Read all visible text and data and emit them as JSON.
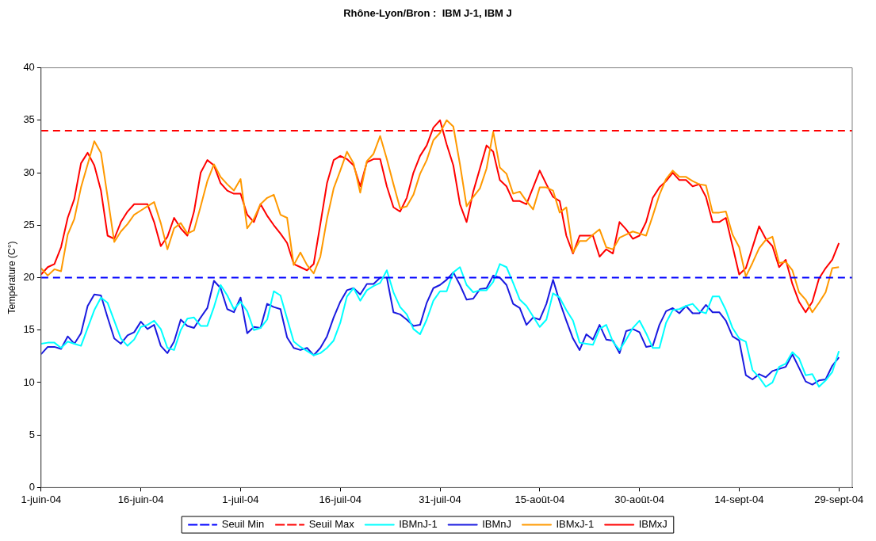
{
  "chart_data": {
    "type": "line",
    "title": "Rhône-Lyon/Bron :  IBM J-1, IBM J",
    "ylabel": "Température (C°)",
    "x": [
      "--06-01",
      "--06-02",
      "--06-03",
      "--06-04",
      "--06-05",
      "--06-06",
      "--06-07",
      "--06-08",
      "--06-09",
      "--06-10",
      "--06-11",
      "--06-12",
      "--06-13",
      "--06-14",
      "--06-15",
      "--06-16",
      "--06-17",
      "--06-18",
      "--06-19",
      "--06-20",
      "--06-21",
      "--06-22",
      "--06-23",
      "--06-24",
      "--06-25",
      "--06-26",
      "--06-27",
      "--06-28",
      "--06-29",
      "--06-30",
      "--07-01",
      "--07-02",
      "--07-03",
      "--07-04",
      "--07-05",
      "--07-06",
      "--07-07",
      "--07-08",
      "--07-09",
      "--07-10",
      "--07-11",
      "--07-12",
      "--07-13",
      "--07-14",
      "--07-15",
      "--07-16",
      "--07-17",
      "--07-18",
      "--07-19",
      "--07-20",
      "--07-21",
      "--07-22",
      "--07-23",
      "--07-24",
      "--07-25",
      "--07-26",
      "--07-27",
      "--07-28",
      "--07-29",
      "--07-30",
      "--07-31",
      "--08-01",
      "--08-02",
      "--08-03",
      "--08-04",
      "--08-05",
      "--08-06",
      "--08-07",
      "--08-08",
      "--08-09",
      "--08-10",
      "--08-11",
      "--08-12",
      "--08-13",
      "--08-14",
      "--08-15",
      "--08-16",
      "--08-17",
      "--08-18",
      "--08-19",
      "--08-20",
      "--08-21",
      "--08-22",
      "--08-23",
      "--08-24",
      "--08-25",
      "--08-26",
      "--08-27",
      "--08-28",
      "--08-29",
      "--08-30",
      "--08-31",
      "--09-01",
      "--09-02",
      "--09-03",
      "--09-04",
      "--09-05",
      "--09-06",
      "--09-07",
      "--09-08",
      "--09-09",
      "--09-10",
      "--09-11",
      "--09-12",
      "--09-13",
      "--09-14",
      "--09-15",
      "--09-16",
      "--09-17",
      "--09-18",
      "--09-19",
      "--09-20",
      "--09-21",
      "--09-22",
      "--09-23",
      "--09-24",
      "--09-25",
      "--09-26",
      "--09-27",
      "--09-28",
      "--09-29"
    ],
    "xlim": [
      "--06-01",
      "--10-01"
    ],
    "xticks": [
      {
        "value": "--06-01",
        "label": "1-juin-04"
      },
      {
        "value": "--06-16",
        "label": "16-juin-04"
      },
      {
        "value": "--07-01",
        "label": "1-juil-04"
      },
      {
        "value": "--07-16",
        "label": "16-juil-04"
      },
      {
        "value": "--07-31",
        "label": "31-juil-04"
      },
      {
        "value": "--08-15",
        "label": "15-août-04"
      },
      {
        "value": "--08-30",
        "label": "30-août-04"
      },
      {
        "value": "--09-14",
        "label": "14-sept-04"
      },
      {
        "value": "--09-29",
        "label": "29-sept-04"
      }
    ],
    "ylim": [
      0,
      40
    ],
    "yticks": [
      0,
      5,
      10,
      15,
      20,
      25,
      30,
      35,
      40
    ],
    "grid": false,
    "legend": "bottom",
    "marker": "none",
    "series": [
      {
        "name": "Seuil Min",
        "color": "#0000ff",
        "line_style": "dashed",
        "x": [
          "--06-01",
          "--10-01"
        ],
        "values": [
          20,
          20
        ]
      },
      {
        "name": "Seuil Max",
        "color": "#ff0000",
        "line_style": "dashed",
        "x": [
          "--06-01",
          "--10-01"
        ],
        "values": [
          34,
          34
        ]
      },
      {
        "name": "IBMnJ-1",
        "color": "#00ffff",
        "line_style": "solid",
        "values": [
          13.7,
          13.8,
          13.8,
          13.3,
          13.9,
          13.7,
          13.5,
          15.2,
          16.9,
          18.1,
          17.6,
          15.9,
          14.2,
          13.5,
          14.1,
          15.3,
          15.5,
          15.9,
          15.1,
          13.3,
          13.1,
          15.0,
          16.1,
          16.2,
          15.4,
          15.4,
          17.2,
          19.3,
          18.3,
          17.0,
          17.7,
          16.8,
          15.0,
          15.2,
          16.0,
          18.7,
          18.3,
          16.1,
          13.9,
          13.4,
          13.0,
          12.6,
          12.8,
          13.3,
          14.0,
          15.7,
          18.2,
          19.0,
          17.8,
          18.8,
          19.2,
          19.5,
          20.7,
          18.6,
          17.2,
          16.5,
          15.1,
          14.6,
          16.0,
          17.8,
          18.7,
          18.7,
          20.5,
          21.0,
          19.3,
          18.6,
          18.8,
          18.8,
          19.6,
          21.3,
          21.0,
          19.5,
          17.9,
          17.3,
          16.3,
          15.3,
          16.0,
          18.5,
          18.1,
          16.9,
          15.9,
          13.8,
          13.7,
          13.6,
          15.1,
          15.5,
          13.9,
          13.1,
          14.1,
          15.2,
          15.9,
          14.7,
          13.3,
          13.3,
          15.7,
          16.9,
          17.0,
          17.3,
          17.5,
          16.8,
          16.6,
          18.2,
          18.2,
          16.9,
          15.2,
          14.2,
          13.9,
          11.2,
          10.5,
          9.6,
          10.0,
          11.5,
          11.8,
          12.9,
          12.3,
          10.7,
          10.8,
          9.6,
          10.2,
          11.0,
          13.0
        ]
      },
      {
        "name": "IBMnJ",
        "color": "#1a1ae0",
        "line_style": "solid",
        "values": [
          12.7,
          13.4,
          13.4,
          13.2,
          14.4,
          13.7,
          14.7,
          17.3,
          18.4,
          18.3,
          16.2,
          14.2,
          13.7,
          14.5,
          14.8,
          15.8,
          15.1,
          15.5,
          13.5,
          12.8,
          13.9,
          16.0,
          15.4,
          15.2,
          16.2,
          17.1,
          19.7,
          19.0,
          17.0,
          16.7,
          18.1,
          14.7,
          15.3,
          15.2,
          17.5,
          17.2,
          17.0,
          14.3,
          13.3,
          13.1,
          13.3,
          12.6,
          13.3,
          14.4,
          16.2,
          17.7,
          18.8,
          19.0,
          18.4,
          19.4,
          19.4,
          20.0,
          20.0,
          16.7,
          16.5,
          16.0,
          15.4,
          15.5,
          17.6,
          19.0,
          19.3,
          19.8,
          20.5,
          19.3,
          17.9,
          18.0,
          18.9,
          19.0,
          20.2,
          20.0,
          19.3,
          17.5,
          17.1,
          15.5,
          16.2,
          16.0,
          17.5,
          19.8,
          17.7,
          15.9,
          14.2,
          13.1,
          14.6,
          14.1,
          15.5,
          14.1,
          14.0,
          12.8,
          14.9,
          15.1,
          14.8,
          13.4,
          13.5,
          15.5,
          16.8,
          17.1,
          16.6,
          17.3,
          16.6,
          16.6,
          17.4,
          16.7,
          16.7,
          15.9,
          14.4,
          14.0,
          10.7,
          10.3,
          10.8,
          10.5,
          11.1,
          11.3,
          11.5,
          12.7,
          11.4,
          10.1,
          9.8,
          10.2,
          10.3,
          11.6,
          12.4
        ]
      },
      {
        "name": "IBMxJ-1",
        "color": "#ff9900",
        "line_style": "solid",
        "values": [
          20.9,
          20.2,
          20.8,
          20.6,
          24.1,
          25.6,
          28.6,
          30.8,
          33.0,
          31.9,
          27.7,
          23.4,
          24.4,
          25.1,
          26.0,
          26.4,
          26.8,
          27.2,
          25.2,
          22.7,
          24.7,
          25.2,
          24.2,
          24.5,
          26.8,
          29.2,
          30.8,
          29.6,
          28.9,
          28.3,
          29.4,
          24.7,
          25.6,
          27.0,
          27.6,
          27.9,
          26.0,
          25.7,
          21.2,
          22.4,
          21.2,
          20.4,
          22.0,
          25.6,
          28.5,
          30.2,
          32.0,
          30.9,
          28.1,
          31.1,
          31.8,
          33.5,
          31.3,
          28.9,
          26.6,
          26.8,
          27.9,
          29.9,
          31.2,
          33.1,
          33.8,
          35.0,
          34.4,
          30.8,
          26.8,
          27.7,
          28.5,
          30.4,
          33.9,
          30.5,
          29.9,
          28.0,
          28.2,
          27.3,
          26.5,
          28.6,
          28.6,
          28.3,
          26.2,
          26.7,
          22.4,
          23.5,
          23.5,
          24.1,
          24.6,
          22.9,
          22.7,
          23.8,
          24.1,
          24.4,
          24.2,
          24.0,
          25.9,
          27.9,
          29.4,
          30.2,
          29.6,
          29.6,
          29.2,
          28.9,
          28.8,
          26.2,
          26.2,
          26.3,
          24.1,
          22.9,
          20.1,
          21.4,
          22.8,
          23.6,
          23.9,
          21.4,
          21.5,
          20.7,
          18.6,
          17.9,
          16.7,
          17.6,
          18.6,
          20.9,
          21.0
        ]
      },
      {
        "name": "IBMxJ",
        "color": "#ff0000",
        "line_style": "solid",
        "values": [
          20.3,
          21.0,
          21.3,
          22.9,
          25.7,
          27.5,
          30.9,
          31.9,
          30.7,
          28.3,
          24.0,
          23.7,
          25.3,
          26.3,
          27.0,
          27.0,
          27.0,
          25.3,
          23.0,
          23.9,
          25.7,
          24.7,
          24.0,
          26.3,
          30.0,
          31.2,
          30.7,
          29.0,
          28.3,
          28.0,
          28.0,
          26.0,
          25.3,
          27.0,
          25.9,
          25.0,
          24.2,
          23.3,
          21.3,
          21.0,
          20.7,
          21.3,
          25.1,
          29.0,
          31.2,
          31.6,
          31.3,
          30.7,
          28.7,
          31.0,
          31.3,
          31.3,
          28.7,
          26.7,
          26.3,
          27.6,
          30.0,
          31.6,
          32.6,
          34.3,
          35.0,
          32.7,
          30.7,
          27.0,
          25.3,
          28.2,
          30.4,
          32.6,
          32.0,
          29.3,
          28.7,
          27.3,
          27.3,
          27.0,
          28.6,
          30.2,
          28.9,
          27.7,
          27.3,
          24.0,
          22.3,
          24.0,
          24.0,
          24.0,
          22.0,
          22.7,
          22.3,
          25.3,
          24.6,
          23.7,
          24.0,
          25.3,
          27.6,
          28.6,
          29.2,
          30.0,
          29.3,
          29.3,
          28.7,
          28.9,
          27.7,
          25.3,
          25.3,
          25.7,
          23.0,
          20.3,
          20.9,
          22.9,
          24.9,
          23.7,
          23.0,
          21.0,
          21.7,
          19.4,
          17.7,
          16.7,
          17.7,
          19.9,
          20.9,
          21.7,
          23.3
        ]
      }
    ]
  }
}
